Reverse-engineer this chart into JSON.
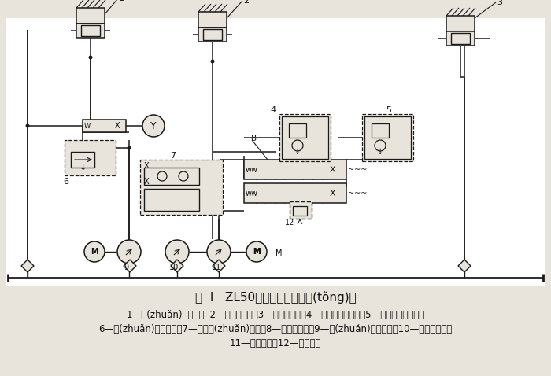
{
  "title_line": "图  I   ZL50型裝載機液壓系統(tǒng)圖",
  "caption_line1": "1—轉(zhuǎn)向液壓缸；2—動臂液壓缸；3—鏟斗液壓缸；4—后雙作用安全閥；5—前雙作用安全閥；",
  "caption_line2": "6—轉(zhuǎn)向溢流閥；7—流量轉(zhuǎn)換閥；8—多路換向閥；9—轉(zhuǎn)向液壓泵；10—輔助液壓泵；",
  "caption_line3": "11—主液壓泵；12—總安全閥",
  "bg_color": "#e8e4dc",
  "line_color": "#1a1a1a",
  "text_color": "#111111",
  "title_fontsize": 11,
  "caption_fontsize": 8.5
}
